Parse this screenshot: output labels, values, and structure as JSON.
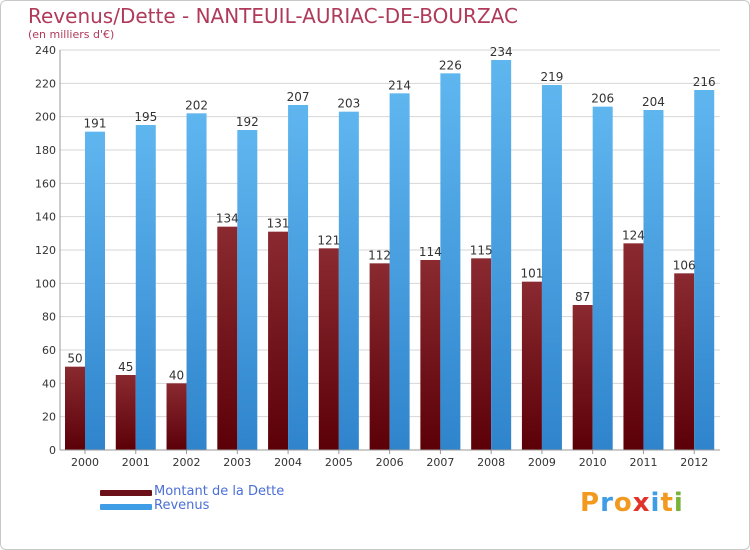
{
  "title": "Revenus/Dette - NANTEUIL-AURIAC-DE-BOURZAC",
  "subtitle": "(en milliers d'€)",
  "brand": {
    "letters": [
      "P",
      "r",
      "o",
      "x",
      "i",
      "t",
      "i"
    ],
    "colors": [
      "#f29a1f",
      "#3f9de6",
      "#f29a1f",
      "#e0332a",
      "#3f9de6",
      "#f29a1f",
      "#7ab33a"
    ]
  },
  "colors": {
    "debt_top": "#8a2a30",
    "debt_bottom": "#5c0008",
    "revenue_top": "#5fb6ef",
    "revenue_bottom": "#2f84cc",
    "grid": "#d6d6d6",
    "axis_text": "#333333"
  },
  "chart_data": {
    "type": "bar",
    "categories": [
      "2000",
      "2001",
      "2002",
      "2003",
      "2004",
      "2005",
      "2006",
      "2007",
      "2008",
      "2009",
      "2010",
      "2011",
      "2012"
    ],
    "series": [
      {
        "name": "Montant de la Dette",
        "values": [
          50,
          45,
          40,
          134,
          131,
          121,
          112,
          114,
          115,
          101,
          87,
          124,
          106
        ]
      },
      {
        "name": "Revenus",
        "values": [
          191,
          195,
          202,
          192,
          207,
          203,
          214,
          226,
          234,
          219,
          206,
          204,
          216
        ]
      }
    ],
    "data_labels": {
      "debt": [
        "50",
        "45",
        "40",
        "134",
        "131",
        "121",
        "112",
        "114",
        "115",
        "101",
        "87",
        "124",
        "106"
      ],
      "revenue": [
        "191",
        "195",
        "202",
        "192",
        "207",
        "203",
        "214",
        "226",
        "234",
        "219",
        "206",
        "204",
        "216"
      ]
    },
    "y_ticks": [
      "0",
      "20",
      "40",
      "60",
      "80",
      "100",
      "120",
      "140",
      "160",
      "180",
      "200",
      "220",
      "240"
    ],
    "ylim": [
      0,
      240
    ],
    "grid": true,
    "legend": "bottom-left"
  }
}
